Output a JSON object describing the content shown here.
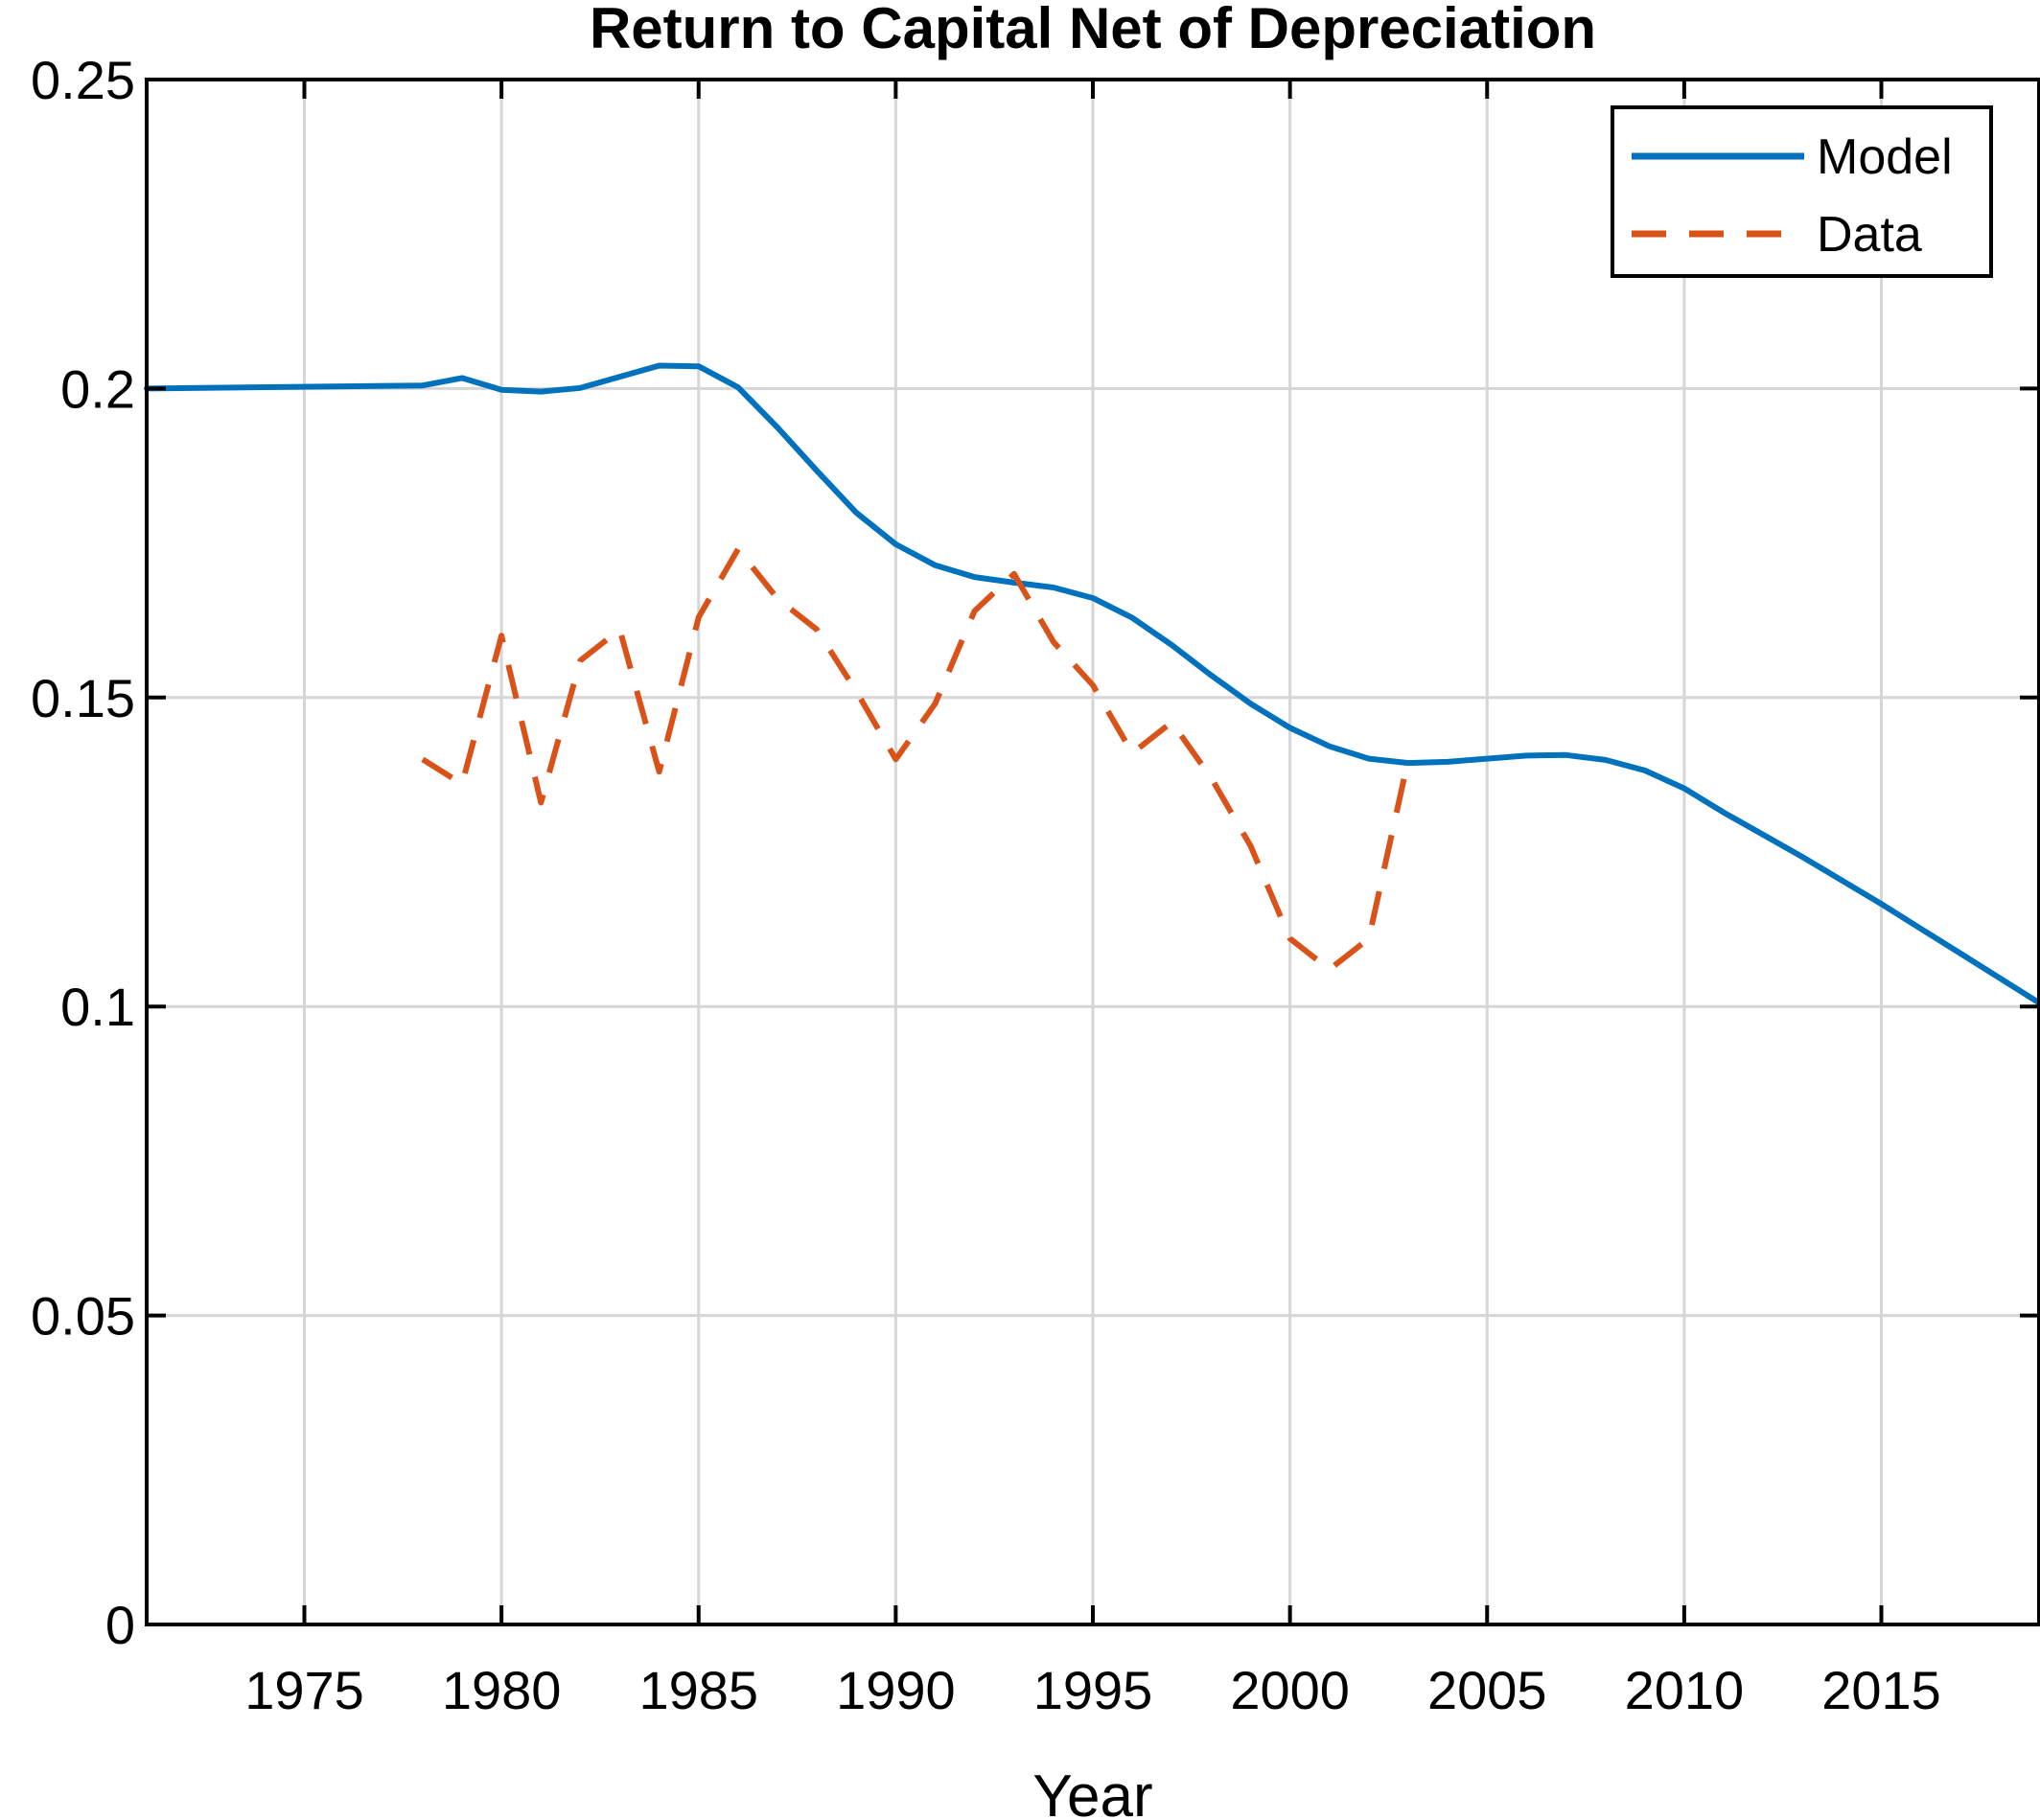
{
  "chart_data": {
    "type": "line",
    "title": "Return to Capital Net of Depreciation",
    "xlabel": "Year",
    "ylabel": "",
    "xlim": [
      1971,
      2019
    ],
    "ylim": [
      0,
      0.25
    ],
    "xticks": [
      1975,
      1980,
      1985,
      1990,
      1995,
      2000,
      2005,
      2010,
      2015
    ],
    "xtick_labels": [
      "1975",
      "1980",
      "1985",
      "1990",
      "1995",
      "2000",
      "2005",
      "2010",
      "2015"
    ],
    "yticks": [
      0,
      0.05,
      0.1,
      0.15,
      0.2,
      0.25
    ],
    "ytick_labels": [
      "0",
      "0.05",
      "0.1",
      "0.15",
      "0.2",
      "0.25"
    ],
    "grid": true,
    "legend_position": "top-right",
    "series": [
      {
        "name": "Model",
        "color": "#0072BD",
        "line_style": "solid",
        "x": [
          1971,
          1978,
          1979,
          1980,
          1981,
          1982,
          1983,
          1984,
          1985,
          1986,
          1987,
          1988,
          1989,
          1990,
          1991,
          1992,
          1993,
          1994,
          1995,
          1996,
          1997,
          1998,
          1999,
          2000,
          2001,
          2002,
          2003,
          2004,
          2005,
          2006,
          2007,
          2008,
          2009,
          2010,
          2011,
          2012,
          2013,
          2014,
          2015,
          2016,
          2017,
          2018,
          2019
        ],
        "values": [
          0.2,
          0.2005,
          0.2017,
          0.1998,
          0.1995,
          0.2001,
          0.2019,
          0.2037,
          0.2036,
          0.2002,
          0.1937,
          0.1867,
          0.1799,
          0.1748,
          0.1714,
          0.1695,
          0.1686,
          0.1678,
          0.1661,
          0.1629,
          0.1585,
          0.1536,
          0.149,
          0.1451,
          0.1421,
          0.1401,
          0.1394,
          0.1396,
          0.1401,
          0.1406,
          0.1407,
          0.1399,
          0.1382,
          0.1353,
          0.1314,
          0.1278,
          0.1242,
          0.1204,
          0.1166,
          0.1126,
          0.1086,
          0.1046,
          0.1006
        ]
      },
      {
        "name": "Data",
        "color": "#D95319",
        "line_style": "dashed",
        "x": [
          1978,
          1979,
          1980,
          1981,
          1982,
          1983,
          1984,
          1985,
          1986,
          1987,
          1988,
          1989,
          1990,
          1991,
          1992,
          1993,
          1994,
          1995,
          1996,
          1997,
          1998,
          1999,
          2000,
          2001,
          2002,
          2003
        ],
        "values": [
          0.14,
          0.136,
          0.16,
          0.133,
          0.156,
          0.161,
          0.138,
          0.163,
          0.174,
          0.166,
          0.161,
          0.151,
          0.14,
          0.149,
          0.164,
          0.17,
          0.159,
          0.152,
          0.141,
          0.146,
          0.137,
          0.126,
          0.111,
          0.106,
          0.111,
          0.14
        ]
      }
    ]
  }
}
